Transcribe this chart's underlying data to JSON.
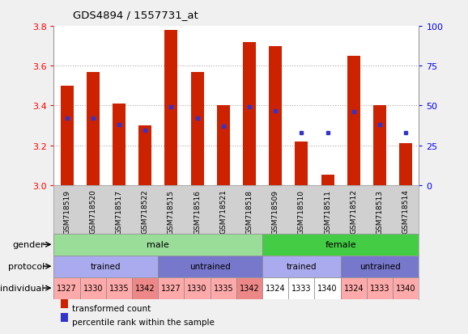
{
  "title": "GDS4894 / 1557731_at",
  "samples": [
    "GSM718519",
    "GSM718520",
    "GSM718517",
    "GSM718522",
    "GSM718515",
    "GSM718516",
    "GSM718521",
    "GSM718518",
    "GSM718509",
    "GSM718510",
    "GSM718511",
    "GSM718512",
    "GSM718513",
    "GSM718514"
  ],
  "bar_values": [
    3.5,
    3.57,
    3.41,
    3.3,
    3.78,
    3.57,
    3.4,
    3.72,
    3.7,
    3.22,
    3.05,
    3.65,
    3.4,
    3.21
  ],
  "percentile_values": [
    3.335,
    3.335,
    3.305,
    3.275,
    3.395,
    3.335,
    3.295,
    3.395,
    3.375,
    3.265,
    3.265,
    3.37,
    3.305,
    3.265
  ],
  "ylim_left": [
    3.0,
    3.8
  ],
  "ylim_right": [
    0,
    100
  ],
  "yticks_left": [
    3.0,
    3.2,
    3.4,
    3.6,
    3.8
  ],
  "yticks_right": [
    0,
    25,
    50,
    75,
    100
  ],
  "bar_color": "#cc2200",
  "blue_color": "#3333cc",
  "bg_color": "#f0f0f0",
  "plot_bg": "#ffffff",
  "xtick_bg": "#d0d0d0",
  "gender_data": [
    {
      "label": "male",
      "start": 0,
      "end": 8,
      "color": "#99dd99"
    },
    {
      "label": "female",
      "start": 8,
      "end": 14,
      "color": "#44cc44"
    }
  ],
  "protocol_data": [
    {
      "label": "trained",
      "start": 0,
      "end": 4,
      "color": "#aaaaee"
    },
    {
      "label": "untrained",
      "start": 4,
      "end": 8,
      "color": "#7777cc"
    },
    {
      "label": "trained",
      "start": 8,
      "end": 11,
      "color": "#aaaaee"
    },
    {
      "label": "untrained",
      "start": 11,
      "end": 14,
      "color": "#7777cc"
    }
  ],
  "individual_data": [
    {
      "label": "1327",
      "start": 0,
      "end": 1,
      "color": "#ffaaaa"
    },
    {
      "label": "1330",
      "start": 1,
      "end": 2,
      "color": "#ffaaaa"
    },
    {
      "label": "1335",
      "start": 2,
      "end": 3,
      "color": "#ffaaaa"
    },
    {
      "label": "1342",
      "start": 3,
      "end": 4,
      "color": "#ee8888"
    },
    {
      "label": "1327",
      "start": 4,
      "end": 5,
      "color": "#ffaaaa"
    },
    {
      "label": "1330",
      "start": 5,
      "end": 6,
      "color": "#ffaaaa"
    },
    {
      "label": "1335",
      "start": 6,
      "end": 7,
      "color": "#ffaaaa"
    },
    {
      "label": "1342",
      "start": 7,
      "end": 8,
      "color": "#ee8888"
    },
    {
      "label": "1324",
      "start": 8,
      "end": 9,
      "color": "#ffffff"
    },
    {
      "label": "1333",
      "start": 9,
      "end": 10,
      "color": "#ffffff"
    },
    {
      "label": "1340",
      "start": 10,
      "end": 11,
      "color": "#ffffff"
    },
    {
      "label": "1324",
      "start": 11,
      "end": 12,
      "color": "#ffaaaa"
    },
    {
      "label": "1333",
      "start": 12,
      "end": 13,
      "color": "#ffaaaa"
    },
    {
      "label": "1340",
      "start": 13,
      "end": 14,
      "color": "#ffaaaa"
    }
  ],
  "legend_items": [
    {
      "label": "transformed count",
      "color": "#cc2200"
    },
    {
      "label": "percentile rank within the sample",
      "color": "#3333cc"
    }
  ],
  "row_label_names": [
    "gender",
    "protocol",
    "individual"
  ],
  "dotted_grid_color": "#aaaaaa",
  "bar_width": 0.5
}
